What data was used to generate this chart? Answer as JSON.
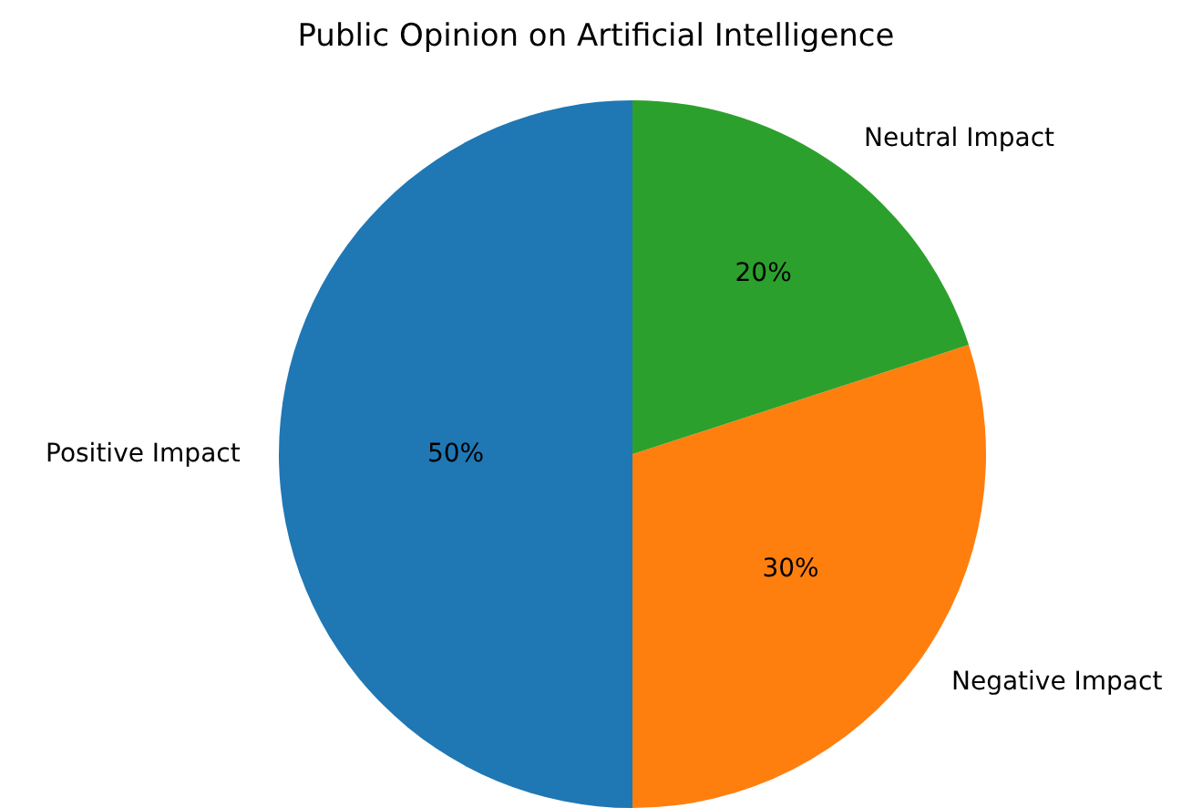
{
  "chart_data": {
    "type": "pie",
    "title": "Public Opinion on Artificial Intelligence",
    "categories": [
      "Positive Impact",
      "Negative Impact",
      "Neutral Impact"
    ],
    "values": [
      50,
      30,
      20
    ],
    "value_labels": [
      "50%",
      "30%",
      "20%"
    ],
    "colors": [
      "#1f77b4",
      "#ff7f0e",
      "#2ca02c"
    ],
    "legend": false
  }
}
